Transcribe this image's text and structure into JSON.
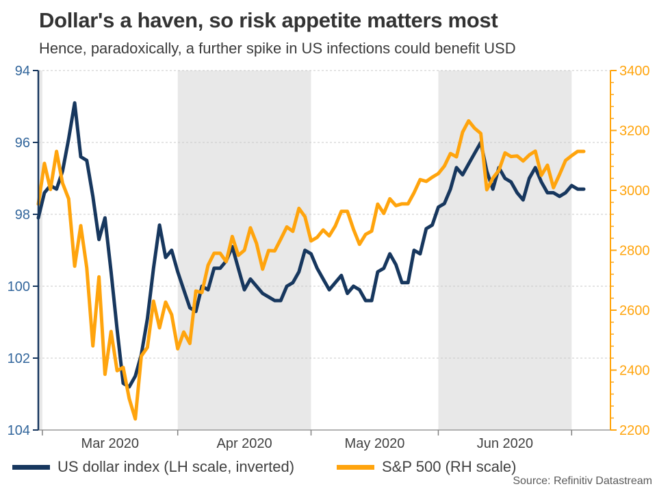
{
  "chart_data": {
    "type": "line",
    "title": "Dollar's a haven, so risk appetite matters most",
    "subtitle": "Hence, paradoxically, a further spike in US infections could benefit USD",
    "source_note": "Source: Refinitiv Datastream",
    "x_axis": {
      "tick_labels": [
        "Mar 2020",
        "Apr 2020",
        "May 2020",
        "Jun 2020"
      ],
      "labeled_months": [
        3,
        4,
        5,
        6
      ],
      "shaded_month_numbers": [
        2,
        4,
        6
      ],
      "frequency": "weekday daily series",
      "range": [
        "2020-02-28",
        "2020-07-03"
      ]
    },
    "left_axis": {
      "series": "US dollar index",
      "min": 94,
      "max": 104,
      "ticks": [
        94,
        96,
        98,
        100,
        102,
        104
      ],
      "inverted": true,
      "label_color": "#31659B",
      "axis_color": "#17375E"
    },
    "right_axis": {
      "series": "S&P 500",
      "min": 2200,
      "max": 3400,
      "ticks": [
        2200,
        2400,
        2600,
        2800,
        3000,
        3200,
        3400
      ],
      "minor_tick_step": 40,
      "label_color": "#FFA40D",
      "axis_color": "#FFA40D"
    },
    "grid": {
      "show": true,
      "style": "dashed",
      "color": "#C8C8C8",
      "band_color": "#E8E8E8"
    },
    "legend_position": "bottom-left",
    "dates": [
      "2020-02-28",
      "2020-03-02",
      "2020-03-03",
      "2020-03-04",
      "2020-03-05",
      "2020-03-06",
      "2020-03-09",
      "2020-03-10",
      "2020-03-11",
      "2020-03-12",
      "2020-03-13",
      "2020-03-16",
      "2020-03-17",
      "2020-03-18",
      "2020-03-19",
      "2020-03-20",
      "2020-03-23",
      "2020-03-24",
      "2020-03-25",
      "2020-03-26",
      "2020-03-27",
      "2020-03-30",
      "2020-03-31",
      "2020-04-01",
      "2020-04-02",
      "2020-04-03",
      "2020-04-06",
      "2020-04-07",
      "2020-04-08",
      "2020-04-09",
      "2020-04-10",
      "2020-04-13",
      "2020-04-14",
      "2020-04-15",
      "2020-04-16",
      "2020-04-17",
      "2020-04-20",
      "2020-04-21",
      "2020-04-22",
      "2020-04-23",
      "2020-04-24",
      "2020-04-27",
      "2020-04-28",
      "2020-04-29",
      "2020-04-30",
      "2020-05-01",
      "2020-05-04",
      "2020-05-05",
      "2020-05-06",
      "2020-05-07",
      "2020-05-08",
      "2020-05-11",
      "2020-05-12",
      "2020-05-13",
      "2020-05-14",
      "2020-05-15",
      "2020-05-18",
      "2020-05-19",
      "2020-05-20",
      "2020-05-21",
      "2020-05-22",
      "2020-05-25",
      "2020-05-26",
      "2020-05-27",
      "2020-05-28",
      "2020-05-29",
      "2020-06-01",
      "2020-06-02",
      "2020-06-03",
      "2020-06-04",
      "2020-06-05",
      "2020-06-08",
      "2020-06-09",
      "2020-06-10",
      "2020-06-11",
      "2020-06-12",
      "2020-06-15",
      "2020-06-16",
      "2020-06-17",
      "2020-06-18",
      "2020-06-19",
      "2020-06-22",
      "2020-06-23",
      "2020-06-24",
      "2020-06-25",
      "2020-06-26",
      "2020-06-29",
      "2020-06-30",
      "2020-07-01",
      "2020-07-02",
      "2020-07-03"
    ],
    "series": [
      {
        "name": "US dollar index (LH scale, inverted)",
        "axis": "left",
        "color": "#17375E",
        "values": [
          98.1,
          97.4,
          97.2,
          97.3,
          96.8,
          95.9,
          94.9,
          96.4,
          96.5,
          97.5,
          98.7,
          98.1,
          99.6,
          101.2,
          102.7,
          102.8,
          102.5,
          101.9,
          100.9,
          99.5,
          98.3,
          99.2,
          99.0,
          99.6,
          100.1,
          100.6,
          100.7,
          100.0,
          100.1,
          99.5,
          99.5,
          99.3,
          98.9,
          99.5,
          100.1,
          99.8,
          100.0,
          100.2,
          100.3,
          100.4,
          100.4,
          100.0,
          99.9,
          99.6,
          99.0,
          99.1,
          99.5,
          99.8,
          100.1,
          99.9,
          99.7,
          100.2,
          100.0,
          100.1,
          100.4,
          100.4,
          99.6,
          99.5,
          99.1,
          99.4,
          99.9,
          99.9,
          99.0,
          99.1,
          98.4,
          98.3,
          97.8,
          97.7,
          97.3,
          96.7,
          96.9,
          96.6,
          96.3,
          96.0,
          96.8,
          97.3,
          96.7,
          97.0,
          97.1,
          97.4,
          97.6,
          97.0,
          96.7,
          97.1,
          97.4,
          97.4,
          97.5,
          97.4,
          97.2,
          97.3,
          97.3
        ]
      },
      {
        "name": "S&P 500 (RH scale)",
        "axis": "right",
        "color": "#FFA40D",
        "values": [
          2954,
          3090,
          3003,
          3130,
          3024,
          2972,
          2747,
          2882,
          2741,
          2481,
          2711,
          2386,
          2529,
          2398,
          2409,
          2305,
          2237,
          2447,
          2476,
          2630,
          2541,
          2627,
          2585,
          2471,
          2527,
          2489,
          2664,
          2659,
          2750,
          2790,
          2790,
          2762,
          2846,
          2783,
          2800,
          2875,
          2823,
          2737,
          2799,
          2798,
          2837,
          2878,
          2863,
          2940,
          2912,
          2831,
          2843,
          2868,
          2848,
          2881,
          2930,
          2930,
          2870,
          2820,
          2853,
          2864,
          2954,
          2923,
          2972,
          2949,
          2955,
          2955,
          2992,
          3036,
          3030,
          3044,
          3056,
          3081,
          3123,
          3112,
          3194,
          3232,
          3207,
          3190,
          3002,
          3041,
          3067,
          3125,
          3113,
          3115,
          3098,
          3118,
          3131,
          3050,
          3084,
          3009,
          3053,
          3100,
          3116,
          3130,
          3130
        ]
      }
    ]
  }
}
